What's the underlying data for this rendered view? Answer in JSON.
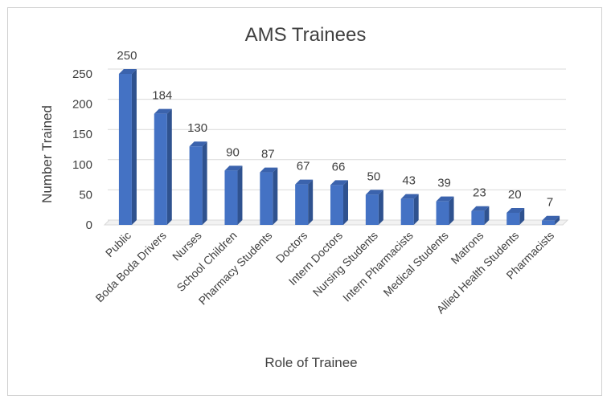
{
  "chart_data": {
    "type": "bar",
    "title": "AMS Trainees",
    "xlabel": "Role of Trainee",
    "ylabel": "Number Trained",
    "ylim": [
      0,
      250
    ],
    "yticks": [
      0,
      50,
      100,
      150,
      200,
      250
    ],
    "grid": true,
    "legend": "none",
    "categories": [
      "Public",
      "Boda Boda Drivers",
      "Nurses",
      "School Children",
      "Pharmacy Students",
      "Doctors",
      "Intern Doctors",
      "Nursing Students",
      "Intern Pharmacists",
      "Medical Students",
      "Matrons",
      "Allied Health Students",
      "Pharmacists"
    ],
    "values": [
      250,
      184,
      130,
      90,
      87,
      67,
      66,
      50,
      43,
      39,
      23,
      20,
      7
    ],
    "colors": {
      "bar_front": "#4472c4",
      "bar_side": "#2f528f",
      "bar_top": "#3b63ad",
      "grid": "#d9d9d9",
      "text": "#404040"
    }
  }
}
